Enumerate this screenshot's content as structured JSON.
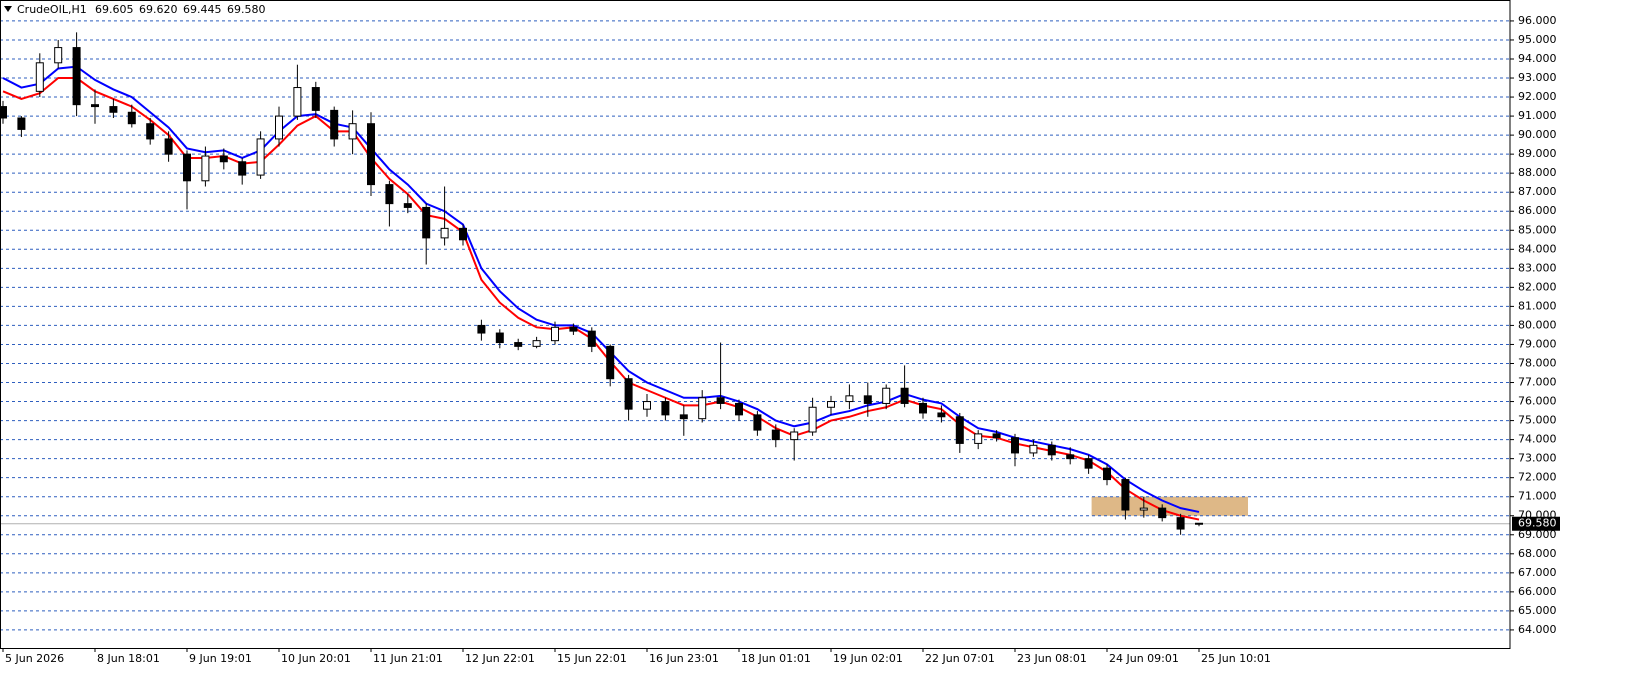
{
  "chart_data": {
    "type": "candlestick",
    "title": "CrudeOIL,H1",
    "ohlc_labels": [
      "69.605",
      "69.620",
      "69.445",
      "69.580"
    ],
    "categories": [
      "5 Jun 2026",
      null,
      null,
      null,
      null,
      "8 Jun 18:01",
      null,
      null,
      null,
      null,
      "9 Jun 19:01",
      null,
      null,
      null,
      null,
      "10 Jun 20:01",
      null,
      null,
      null,
      null,
      "11 Jun 21:01",
      null,
      null,
      null,
      null,
      "12 Jun 22:01",
      null,
      null,
      null,
      null,
      "15 Jun 22:01",
      null,
      null,
      null,
      null,
      "16 Jun 23:01",
      null,
      null,
      null,
      null,
      "18 Jun 01:01",
      null,
      null,
      null,
      null,
      "19 Jun 02:01",
      null,
      null,
      null,
      null,
      "22 Jun 07:01",
      null,
      null,
      null,
      null,
      "23 Jun 08:01",
      null,
      null,
      null,
      null,
      "24 Jun 09:01",
      null,
      null,
      null,
      null,
      "25 Jun 10:01"
    ],
    "open": [
      91.5,
      90.9,
      92.3,
      93.8,
      94.6,
      91.6,
      91.5,
      91.2,
      90.6,
      89.8,
      89.0,
      87.6,
      88.9,
      88.6,
      87.9,
      89.8,
      91.0,
      92.5,
      91.3,
      89.8,
      90.6,
      87.4,
      86.4,
      86.2,
      84.6,
      85.1,
      80.0,
      79.6,
      79.1,
      78.9,
      79.2,
      79.9,
      79.7,
      78.9,
      77.2,
      75.6,
      76.0,
      75.3,
      75.1,
      76.2,
      75.9,
      75.3,
      74.5,
      74.0,
      74.4,
      75.7,
      76.0,
      76.3,
      75.9,
      76.7,
      75.9,
      75.4,
      75.2,
      73.8,
      74.3,
      74.1,
      73.3,
      73.7,
      73.2,
      73.0,
      72.5,
      71.9,
      70.3,
      70.4,
      69.9,
      69.605
    ],
    "high": [
      91.8,
      91.0,
      94.3,
      95.0,
      95.4,
      92.4,
      91.9,
      91.6,
      90.9,
      90.2,
      89.2,
      89.4,
      89.3,
      88.8,
      90.2,
      91.5,
      93.7,
      92.8,
      91.5,
      91.3,
      91.2,
      87.6,
      86.9,
      86.4,
      87.3,
      85.3,
      80.3,
      79.8,
      79.3,
      79.4,
      80.2,
      80.1,
      79.9,
      79.0,
      77.4,
      76.4,
      76.2,
      75.8,
      76.6,
      79.1,
      76.1,
      75.5,
      74.8,
      74.6,
      76.2,
      76.3,
      76.9,
      77.0,
      76.9,
      77.9,
      76.2,
      75.8,
      75.4,
      74.5,
      74.5,
      74.3,
      74.0,
      73.9,
      73.6,
      73.2,
      72.7,
      72.0,
      71.0,
      70.6,
      70.1,
      69.62
    ],
    "low": [
      90.6,
      89.9,
      92.0,
      93.5,
      91.0,
      90.6,
      90.9,
      90.4,
      89.5,
      88.6,
      86.1,
      87.3,
      88.2,
      87.4,
      87.7,
      89.4,
      90.8,
      90.9,
      89.4,
      89.0,
      86.8,
      85.2,
      85.9,
      83.2,
      84.2,
      84.2,
      79.2,
      78.8,
      78.7,
      78.8,
      79.0,
      79.5,
      78.6,
      76.8,
      75.0,
      75.2,
      75.0,
      74.2,
      74.9,
      75.6,
      75.0,
      74.2,
      73.6,
      72.9,
      74.2,
      75.3,
      75.6,
      75.2,
      75.6,
      75.7,
      75.1,
      74.9,
      73.3,
      73.5,
      73.9,
      72.6,
      73.1,
      72.9,
      72.7,
      72.2,
      71.6,
      69.8,
      69.9,
      69.7,
      69.0,
      69.445
    ],
    "close": [
      90.9,
      90.3,
      93.8,
      94.6,
      91.6,
      91.5,
      91.2,
      90.6,
      89.8,
      89.0,
      87.6,
      88.9,
      88.6,
      87.9,
      89.8,
      91.0,
      92.5,
      91.3,
      89.8,
      90.6,
      87.4,
      86.4,
      86.2,
      84.6,
      85.1,
      84.5,
      79.6,
      79.1,
      78.9,
      79.2,
      79.9,
      79.7,
      78.9,
      77.2,
      75.6,
      76.0,
      75.3,
      75.1,
      76.2,
      75.9,
      75.3,
      74.5,
      74.0,
      74.4,
      75.7,
      76.0,
      76.3,
      75.9,
      76.7,
      75.9,
      75.4,
      75.2,
      73.8,
      74.3,
      74.1,
      73.3,
      73.7,
      73.2,
      73.0,
      72.5,
      71.9,
      70.3,
      70.4,
      69.9,
      69.3,
      69.58
    ],
    "moving_averages": [
      {
        "color": "#0000ff",
        "values": [
          93.0,
          92.5,
          92.7,
          93.5,
          93.6,
          92.9,
          92.4,
          92.0,
          91.2,
          90.4,
          89.3,
          89.1,
          89.2,
          88.8,
          89.2,
          90.2,
          91.0,
          91.1,
          90.6,
          90.4,
          89.3,
          88.2,
          87.4,
          86.4,
          86.0,
          85.3,
          83.0,
          81.8,
          80.9,
          80.3,
          80.0,
          80.0,
          79.6,
          78.6,
          77.6,
          77.0,
          76.6,
          76.2,
          76.2,
          76.3,
          76.0,
          75.6,
          75.0,
          74.7,
          74.9,
          75.3,
          75.5,
          75.8,
          76.0,
          76.4,
          76.1,
          75.9,
          75.2,
          74.6,
          74.4,
          74.1,
          73.9,
          73.7,
          73.5,
          73.2,
          72.7,
          71.9,
          71.3,
          70.8,
          70.4,
          70.2
        ]
      },
      {
        "color": "#ff0000",
        "values": [
          92.3,
          91.9,
          92.2,
          93.0,
          93.0,
          92.3,
          91.9,
          91.5,
          90.8,
          90.0,
          88.8,
          88.8,
          88.9,
          88.5,
          88.6,
          89.5,
          90.5,
          91.0,
          90.2,
          90.2,
          88.8,
          87.7,
          86.9,
          85.8,
          85.6,
          84.9,
          82.4,
          81.2,
          80.4,
          79.9,
          79.8,
          79.9,
          79.3,
          78.1,
          77.0,
          76.6,
          76.2,
          75.8,
          75.8,
          76.0,
          75.7,
          75.2,
          74.6,
          74.2,
          74.5,
          75.0,
          75.2,
          75.5,
          75.7,
          76.1,
          75.8,
          75.6,
          74.8,
          74.2,
          74.1,
          73.8,
          73.6,
          73.4,
          73.2,
          72.9,
          72.3,
          71.4,
          70.8,
          70.3,
          70.0,
          69.8
        ]
      }
    ],
    "zone": {
      "ylim": [
        70,
        71
      ],
      "color": "#deb887"
    },
    "last_price": {
      "value": 69.58,
      "label": "69.580"
    },
    "ylim": [
      63.05,
      97.1
    ],
    "yticks": [
      {
        "value": 64,
        "label": "64.000"
      },
      {
        "value": 65,
        "label": "65.000"
      },
      {
        "value": 66,
        "label": "66.000"
      },
      {
        "value": 67,
        "label": "67.000"
      },
      {
        "value": 68,
        "label": "68.000"
      },
      {
        "value": 69,
        "label": "69.000"
      },
      {
        "value": 70,
        "label": "70.000"
      },
      {
        "value": 71,
        "label": "71.000"
      },
      {
        "value": 72,
        "label": "72.000"
      },
      {
        "value": 73,
        "label": "73.000"
      },
      {
        "value": 74,
        "label": "74.000"
      },
      {
        "value": 75,
        "label": "75.000"
      },
      {
        "value": 76,
        "label": "76.000"
      },
      {
        "value": 77,
        "label": "77.000"
      },
      {
        "value": 78,
        "label": "78.000"
      },
      {
        "value": 79,
        "label": "79.000"
      },
      {
        "value": 80,
        "label": "80.000"
      },
      {
        "value": 81,
        "label": "81.000"
      },
      {
        "value": 82,
        "label": "82.000"
      },
      {
        "value": 83,
        "label": "83.000"
      },
      {
        "value": 84,
        "label": "84.000"
      },
      {
        "value": 85,
        "label": "85.000"
      },
      {
        "value": 86,
        "label": "86.000"
      },
      {
        "value": 87,
        "label": "87.000"
      },
      {
        "value": 88,
        "label": "88.000"
      },
      {
        "value": 89,
        "label": "89.000"
      },
      {
        "value": 90,
        "label": "90.000"
      },
      {
        "value": 91,
        "label": "91.000"
      },
      {
        "value": 92,
        "label": "92.000"
      },
      {
        "value": 93,
        "label": "93.000"
      },
      {
        "value": 94,
        "label": "94.000"
      },
      {
        "value": 95,
        "label": "95.000"
      },
      {
        "value": 96,
        "label": "96.000"
      }
    ],
    "grid": true,
    "grid_color": "#2f5fbf",
    "up_color": "#ffffff",
    "down_color": "#000000"
  }
}
